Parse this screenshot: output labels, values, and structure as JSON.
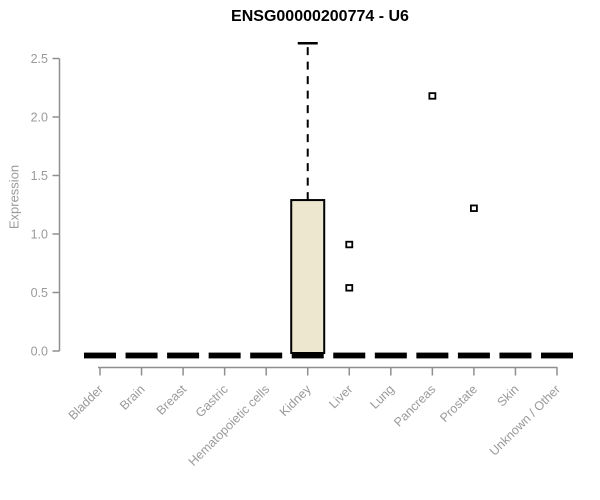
{
  "chart_data": {
    "type": "boxplot",
    "title": "ENSG00000200774 - U6",
    "ylabel": "Expression",
    "xlabel": "",
    "ylim": [
      0,
      2.65
    ],
    "yticks": [
      0.0,
      0.5,
      1.0,
      1.5,
      2.0,
      2.5
    ],
    "grid": false,
    "legend": "none",
    "categories": [
      "Bladder",
      "Brain",
      "Breast",
      "Gastric",
      "Hematopoietic cells",
      "Kidney",
      "Liver",
      "Lung",
      "Pancreas",
      "Prostate",
      "Skin",
      "Unknown / Other"
    ],
    "boxes": [
      {
        "category": "Bladder",
        "q1": 0,
        "median": 0,
        "q3": 0,
        "whisker_low": 0,
        "whisker_high": 0,
        "outliers": []
      },
      {
        "category": "Brain",
        "q1": 0,
        "median": 0,
        "q3": 0,
        "whisker_low": 0,
        "whisker_high": 0,
        "outliers": []
      },
      {
        "category": "Breast",
        "q1": 0,
        "median": 0,
        "q3": 0,
        "whisker_low": 0,
        "whisker_high": 0,
        "outliers": []
      },
      {
        "category": "Gastric",
        "q1": 0,
        "median": 0,
        "q3": 0,
        "whisker_low": 0,
        "whisker_high": 0,
        "outliers": []
      },
      {
        "category": "Hematopoietic cells",
        "q1": 0,
        "median": 0,
        "q3": 0,
        "whisker_low": 0,
        "whisker_high": 0,
        "outliers": []
      },
      {
        "category": "Kidney",
        "q1": 0,
        "median": 0,
        "q3": 1.29,
        "whisker_low": 0,
        "whisker_high": 2.63,
        "outliers": []
      },
      {
        "category": "Liver",
        "q1": 0,
        "median": 0,
        "q3": 0,
        "whisker_low": 0,
        "whisker_high": 0,
        "outliers": [
          0.91,
          0.54
        ]
      },
      {
        "category": "Lung",
        "q1": 0,
        "median": 0,
        "q3": 0,
        "whisker_low": 0,
        "whisker_high": 0,
        "outliers": []
      },
      {
        "category": "Pancreas",
        "q1": 0,
        "median": 0,
        "q3": 0,
        "whisker_low": 0,
        "whisker_high": 0,
        "outliers": [
          2.18
        ]
      },
      {
        "category": "Prostate",
        "q1": 0,
        "median": 0,
        "q3": 0,
        "whisker_low": 0,
        "whisker_high": 0,
        "outliers": [
          1.22
        ]
      },
      {
        "category": "Skin",
        "q1": 0,
        "median": 0,
        "q3": 0,
        "whisker_low": 0,
        "whisker_high": 0,
        "outliers": []
      },
      {
        "category": "Unknown / Other",
        "q1": 0,
        "median": 0,
        "q3": 0,
        "whisker_low": 0,
        "whisker_high": 0,
        "outliers": []
      }
    ],
    "colors": {
      "box_fill": "#ece7ce",
      "box_border": "#000000",
      "median": "#000000",
      "whisker": "#000000",
      "outlier": "#000000",
      "axis_line": "#8f8f8f",
      "tick_text": "#9a9a9a",
      "title_text": "#000000",
      "background": "#ffffff"
    }
  }
}
